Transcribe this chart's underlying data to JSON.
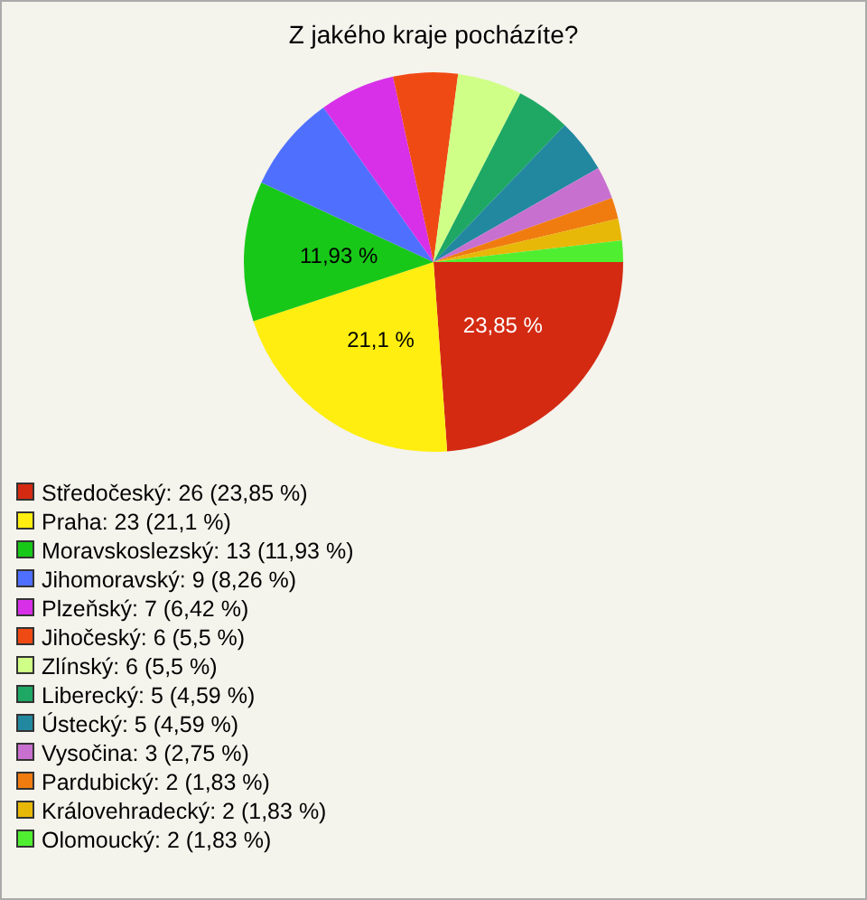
{
  "chart_data": {
    "type": "pie",
    "title": "Z jakého kraje pocházíte?",
    "categories": [
      "Středočeský: 26 (23,85 %)",
      "Praha: 23 (21,1 %)",
      "Moravskoslezský: 13 (11,93 %)",
      "Jihomoravský: 9 (8,26 %)",
      "Plzeňský: 7 (6,42 %)",
      "Jihočeský: 6 (5,5 %)",
      "Zlínský: 6 (5,5 %)",
      "Liberecký: 5 (4,59 %)",
      "Ústecký: 5 (4,59 %)",
      "Vysočina: 3 (2,75 %)",
      "Pardubický: 2 (1,83 %)",
      "Královehradecký: 2 (1,83 %)",
      "Olomoucký: 2 (1,83 %)"
    ],
    "values": [
      23.85,
      21.1,
      11.93,
      8.26,
      6.42,
      5.5,
      5.5,
      4.59,
      4.59,
      2.75,
      1.83,
      1.83,
      1.83
    ],
    "colors": [
      "#d42a12",
      "#ffee10",
      "#18c818",
      "#4f70ff",
      "#d830e8",
      "#f04a14",
      "#d0ff88",
      "#1ea864",
      "#2288a0",
      "#c870d0",
      "#f07c10",
      "#e8b808",
      "#50ee30"
    ],
    "value_labels": [
      "23,85 %",
      "21,1 %",
      "11,93 %",
      null,
      null,
      null,
      null,
      null,
      null,
      null,
      null,
      null,
      null
    ],
    "legend": "bottom left"
  }
}
